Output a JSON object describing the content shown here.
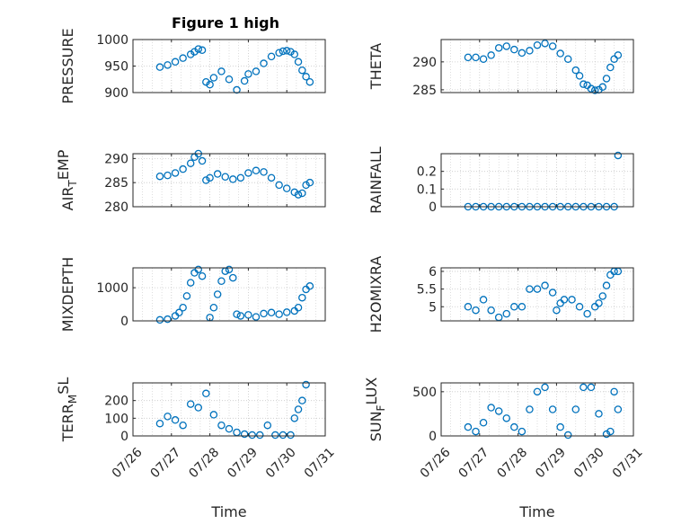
{
  "figure_title": "Figure 1 high",
  "colors": {
    "marker": "#0072BD",
    "axis": "#262626",
    "grid": "#c8c8c8",
    "background": "#ffffff"
  },
  "chart_data": [
    {
      "type": "scatter",
      "id": "pressure",
      "ylabel": "PRESSURE",
      "xlabel": "",
      "title": "Figure 1 high",
      "xlim": [
        "07/26",
        "07/31"
      ],
      "ylim": [
        900,
        1000
      ],
      "yticks": [
        900,
        950,
        1000
      ],
      "grid": "on",
      "x_ticks": [
        "07/26",
        "07/27",
        "07/28",
        "07/29",
        "07/30",
        "07/31"
      ],
      "x_ticklabels_shown": false,
      "x": [
        0.7,
        0.9,
        1.1,
        1.3,
        1.5,
        1.6,
        1.7,
        1.8,
        1.9,
        2.0,
        2.1,
        2.3,
        2.5,
        2.7,
        2.9,
        3.0,
        3.2,
        3.4,
        3.6,
        3.8,
        3.9,
        4.0,
        4.1,
        4.2,
        4.3,
        4.4,
        4.5,
        4.6
      ],
      "y": [
        948,
        952,
        958,
        965,
        972,
        977,
        982,
        980,
        920,
        915,
        928,
        940,
        925,
        905,
        922,
        935,
        940,
        955,
        968,
        975,
        978,
        979,
        977,
        972,
        958,
        942,
        930,
        920
      ]
    },
    {
      "type": "scatter",
      "id": "theta",
      "ylabel": "THETA",
      "xlabel": "",
      "xlim": [
        "07/26",
        "07/31"
      ],
      "ylim": [
        284.5,
        294
      ],
      "yticks": [
        285,
        290
      ],
      "grid": "on",
      "x_ticks": [
        "07/26",
        "07/27",
        "07/28",
        "07/29",
        "07/30",
        "07/31"
      ],
      "x_ticklabels_shown": false,
      "x": [
        0.7,
        0.9,
        1.1,
        1.3,
        1.5,
        1.7,
        1.9,
        2.1,
        2.3,
        2.5,
        2.7,
        2.9,
        3.1,
        3.3,
        3.5,
        3.6,
        3.7,
        3.8,
        3.9,
        4.0,
        4.1,
        4.2,
        4.3,
        4.4,
        4.5,
        4.6
      ],
      "y": [
        290.8,
        290.8,
        290.5,
        291.2,
        292.5,
        292.8,
        292.2,
        291.6,
        292.0,
        293.0,
        293.3,
        292.8,
        291.5,
        290.5,
        288.5,
        287.5,
        286.0,
        285.8,
        285.2,
        284.9,
        285.0,
        285.5,
        287.0,
        289.0,
        290.5,
        291.2
      ]
    },
    {
      "type": "scatter",
      "id": "air_temp",
      "ylabel": "AIR_TEMP",
      "xlabel": "",
      "xlim": [
        "07/26",
        "07/31"
      ],
      "ylim": [
        280,
        291
      ],
      "yticks": [
        280,
        285,
        290
      ],
      "grid": "on",
      "x_ticks": [
        "07/26",
        "07/27",
        "07/28",
        "07/29",
        "07/30",
        "07/31"
      ],
      "x_ticklabels_shown": false,
      "x": [
        0.7,
        0.9,
        1.1,
        1.3,
        1.5,
        1.6,
        1.7,
        1.8,
        1.9,
        2.0,
        2.2,
        2.4,
        2.6,
        2.8,
        3.0,
        3.2,
        3.4,
        3.6,
        3.8,
        4.0,
        4.2,
        4.3,
        4.4,
        4.5,
        4.6
      ],
      "y": [
        286.3,
        286.5,
        287.0,
        287.8,
        289.0,
        290.3,
        291.0,
        289.5,
        285.5,
        286.0,
        286.8,
        286.2,
        285.7,
        286.0,
        287.0,
        287.5,
        287.2,
        286.0,
        284.5,
        283.8,
        283.0,
        282.5,
        282.8,
        284.5,
        285.0
      ]
    },
    {
      "type": "scatter",
      "id": "rainfall",
      "ylabel": "RAINFALL",
      "xlabel": "",
      "xlim": [
        "07/26",
        "07/31"
      ],
      "ylim": [
        0,
        0.3
      ],
      "yticks": [
        0,
        0.1,
        0.2
      ],
      "grid": "on",
      "x_ticks": [
        "07/26",
        "07/27",
        "07/28",
        "07/29",
        "07/30",
        "07/31"
      ],
      "x_ticklabels_shown": false,
      "x": [
        0.7,
        0.9,
        1.1,
        1.3,
        1.5,
        1.7,
        1.9,
        2.1,
        2.3,
        2.5,
        2.7,
        2.9,
        3.1,
        3.3,
        3.5,
        3.7,
        3.9,
        4.1,
        4.3,
        4.5,
        4.6
      ],
      "y": [
        0,
        0,
        0,
        0,
        0,
        0,
        0,
        0,
        0,
        0,
        0,
        0,
        0,
        0,
        0,
        0,
        0,
        0,
        0,
        0,
        0.29
      ]
    },
    {
      "type": "scatter",
      "id": "mixdepth",
      "ylabel": "MIXDEPTH",
      "xlabel": "",
      "xlim": [
        "07/26",
        "07/31"
      ],
      "ylim": [
        0,
        1600
      ],
      "yticks": [
        0,
        1000
      ],
      "grid": "on",
      "x_ticks": [
        "07/26",
        "07/27",
        "07/28",
        "07/29",
        "07/30",
        "07/31"
      ],
      "x_ticklabels_shown": false,
      "x": [
        0.7,
        0.9,
        1.1,
        1.2,
        1.3,
        1.4,
        1.5,
        1.6,
        1.7,
        1.8,
        2.0,
        2.1,
        2.2,
        2.3,
        2.4,
        2.5,
        2.6,
        2.7,
        2.8,
        3.0,
        3.2,
        3.4,
        3.6,
        3.8,
        4.0,
        4.2,
        4.3,
        4.4,
        4.5,
        4.6
      ],
      "y": [
        30,
        50,
        150,
        250,
        400,
        750,
        1150,
        1450,
        1550,
        1350,
        100,
        400,
        800,
        1200,
        1500,
        1550,
        1300,
        200,
        150,
        180,
        120,
        220,
        250,
        200,
        260,
        300,
        400,
        700,
        950,
        1050
      ]
    },
    {
      "type": "scatter",
      "id": "h2omixra",
      "ylabel": "H2OMIXRA",
      "xlabel": "",
      "xlim": [
        "07/26",
        "07/31"
      ],
      "ylim": [
        4.6,
        6.1
      ],
      "yticks": [
        5,
        5.5,
        6
      ],
      "grid": "on",
      "x_ticks": [
        "07/26",
        "07/27",
        "07/28",
        "07/29",
        "07/30",
        "07/31"
      ],
      "x_ticklabels_shown": false,
      "x": [
        0.7,
        0.9,
        1.1,
        1.3,
        1.5,
        1.7,
        1.9,
        2.1,
        2.3,
        2.5,
        2.7,
        2.9,
        3.0,
        3.1,
        3.2,
        3.4,
        3.6,
        3.8,
        4.0,
        4.1,
        4.2,
        4.3,
        4.4,
        4.5,
        4.6
      ],
      "y": [
        5.0,
        4.9,
        5.2,
        4.9,
        4.7,
        4.8,
        5.0,
        5.0,
        5.5,
        5.5,
        5.6,
        5.4,
        4.9,
        5.1,
        5.2,
        5.2,
        5.0,
        4.8,
        5.0,
        5.1,
        5.3,
        5.6,
        5.9,
        6.0,
        6.0
      ]
    },
    {
      "type": "scatter",
      "id": "terr_msl",
      "ylabel": "TERR_MSL",
      "xlabel": "Time",
      "xlim": [
        "07/26",
        "07/31"
      ],
      "ylim": [
        0,
        300
      ],
      "yticks": [
        0,
        100,
        200
      ],
      "grid": "on",
      "x_ticks": [
        "07/26",
        "07/27",
        "07/28",
        "07/29",
        "07/30",
        "07/31"
      ],
      "x_ticklabels_shown": true,
      "x": [
        0.7,
        0.9,
        1.1,
        1.3,
        1.5,
        1.7,
        1.9,
        2.1,
        2.3,
        2.5,
        2.7,
        2.9,
        3.1,
        3.3,
        3.5,
        3.7,
        3.9,
        4.1,
        4.2,
        4.3,
        4.4,
        4.5
      ],
      "y": [
        70,
        110,
        90,
        60,
        180,
        160,
        240,
        120,
        60,
        40,
        20,
        10,
        5,
        5,
        60,
        5,
        5,
        5,
        100,
        150,
        200,
        290
      ]
    },
    {
      "type": "scatter",
      "id": "sun_flux",
      "ylabel": "SUN_FLUX",
      "xlabel": "Time",
      "xlim": [
        "07/26",
        "07/31"
      ],
      "ylim": [
        0,
        600
      ],
      "yticks": [
        0,
        500
      ],
      "grid": "on",
      "x_ticks": [
        "07/26",
        "07/27",
        "07/28",
        "07/29",
        "07/30",
        "07/31"
      ],
      "x_ticklabels_shown": true,
      "x": [
        0.7,
        0.9,
        1.1,
        1.3,
        1.5,
        1.7,
        1.9,
        2.1,
        2.3,
        2.5,
        2.7,
        2.9,
        3.1,
        3.3,
        3.5,
        3.7,
        3.9,
        4.1,
        4.3,
        4.4,
        4.5,
        4.6
      ],
      "y": [
        100,
        50,
        150,
        320,
        280,
        200,
        100,
        50,
        300,
        500,
        550,
        300,
        100,
        10,
        300,
        550,
        550,
        250,
        20,
        50,
        500,
        300
      ]
    }
  ]
}
